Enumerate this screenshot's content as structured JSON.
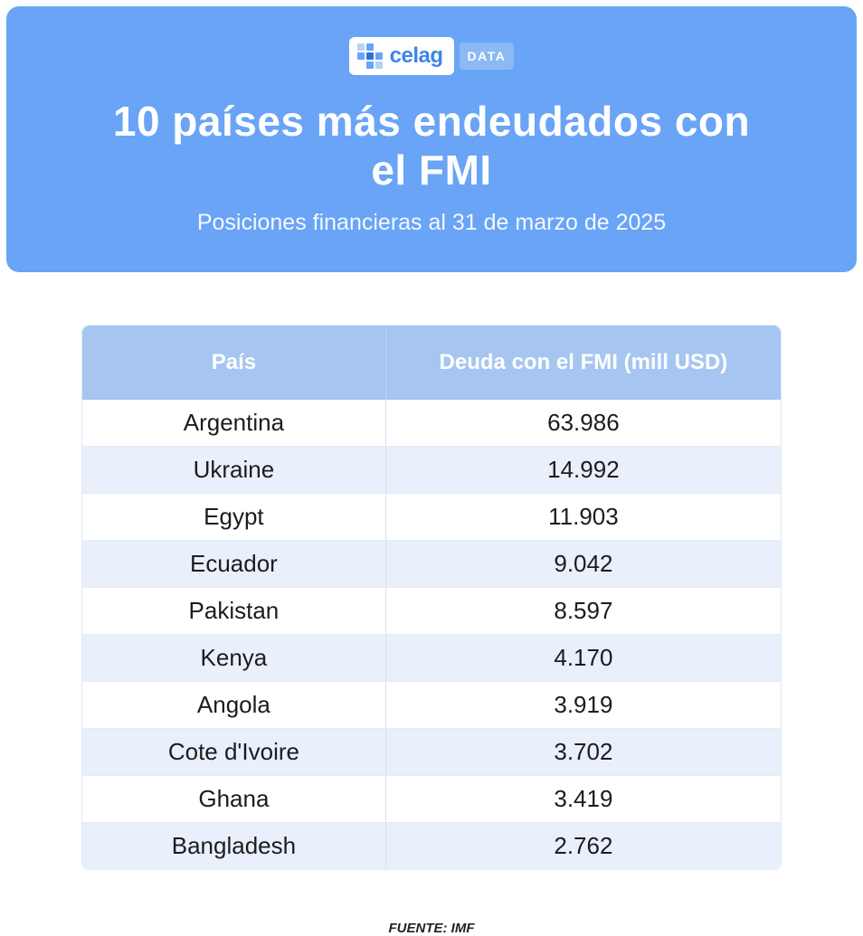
{
  "header": {
    "logo": {
      "brand": "celag",
      "suffix": "DATA"
    },
    "title_lines": [
      "10 países más endeudados con",
      "el FMI"
    ],
    "subtitle": "Posiciones financieras al 31 de marzo de 2025"
  },
  "table": {
    "columns": [
      "País",
      "Deuda con el FMI (mill USD)"
    ],
    "rows": [
      [
        "Argentina",
        "63.986"
      ],
      [
        "Ukraine",
        "14.992"
      ],
      [
        "Egypt",
        "11.903"
      ],
      [
        "Ecuador",
        "9.042"
      ],
      [
        "Pakistan",
        "8.597"
      ],
      [
        "Kenya",
        "4.170"
      ],
      [
        "Angola",
        "3.919"
      ],
      [
        "Cote d'Ivoire",
        "3.702"
      ],
      [
        "Ghana",
        "3.419"
      ],
      [
        "Bangladesh",
        "2.762"
      ]
    ]
  },
  "footer": {
    "source": "FUENTE: IMF"
  },
  "colors": {
    "band_blue": "#69a4f6",
    "table_header_blue": "#a6c6f1",
    "row_alt_blue": "#e9f0fb",
    "brand_blue": "#3d85e8",
    "text_dark": "#1c1c1e"
  },
  "chart_data": {
    "type": "table",
    "title": "10 países más endeudados con el FMI",
    "subtitle": "Posiciones financieras al 31 de marzo de 2025",
    "columns": [
      "País",
      "Deuda con el FMI (mill USD)"
    ],
    "categories": [
      "Argentina",
      "Ukraine",
      "Egypt",
      "Ecuador",
      "Pakistan",
      "Kenya",
      "Angola",
      "Cote d'Ivoire",
      "Ghana",
      "Bangladesh"
    ],
    "values": [
      63986,
      14992,
      11903,
      9042,
      8597,
      4170,
      3919,
      3702,
      3419,
      2762
    ],
    "units": "millones de USD",
    "source": "FUENTE: IMF"
  }
}
